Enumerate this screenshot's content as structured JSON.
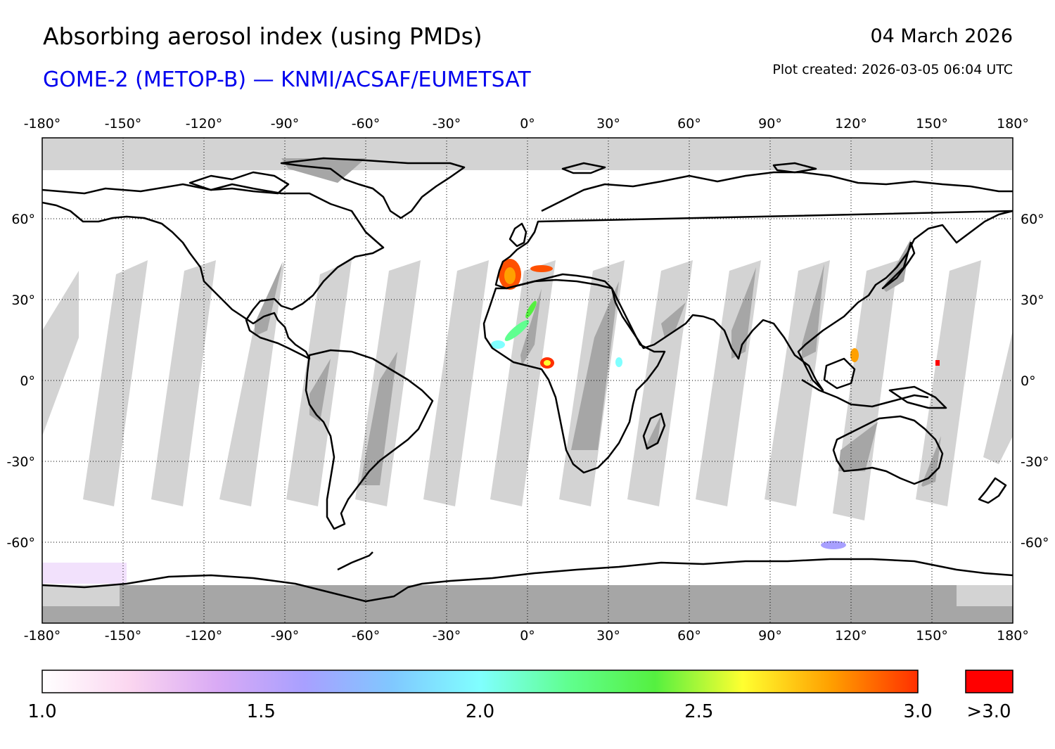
{
  "header": {
    "title": "Absorbing aerosol index (using PMDs)",
    "subtitle": "GOME-2 (METOP-B) — KNMI/ACSAF/EUMETSAT",
    "date": "04 March 2026",
    "created": "Plot created: 2026-03-05 06:04 UTC"
  },
  "map": {
    "projection": "equirectangular",
    "lon_range": [
      -180,
      180
    ],
    "lat_range": [
      -90,
      90
    ],
    "lon_ticks": [
      "-180°",
      "-150°",
      "-120°",
      "-90°",
      "-60°",
      "-30°",
      "0°",
      "30°",
      "60°",
      "90°",
      "120°",
      "150°",
      "180°"
    ],
    "lat_ticks": [
      "60°",
      "30°",
      "0°",
      "-30°",
      "-60°"
    ],
    "colors": {
      "no_data": "#d3d3d3",
      "no_data_dark": "#a6a6a6",
      "background": "#ffffff",
      "coastline": "#000000"
    },
    "hotspots": [
      {
        "region": "Iberia / Western Mediterranean",
        "level": ">3.0"
      },
      {
        "region": "West Africa / Sahara",
        "level": "2.0-2.8"
      },
      {
        "region": "Gulf of Guinea",
        "level": ">3.0"
      }
    ]
  },
  "colorbar": {
    "min": 1.0,
    "max": 3.0,
    "tick_labels": [
      "1.0",
      "1.5",
      "2.0",
      "2.5",
      "3.0"
    ],
    "overflow_label": ">3.0",
    "overflow_color": "#ff0000",
    "stops": [
      "#ffffff",
      "#fbd6f0",
      "#d9aaf5",
      "#a8a0ff",
      "#80c8ff",
      "#80ffff",
      "#60ff90",
      "#55f040",
      "#ffff30",
      "#ffa000",
      "#ff3000"
    ]
  }
}
